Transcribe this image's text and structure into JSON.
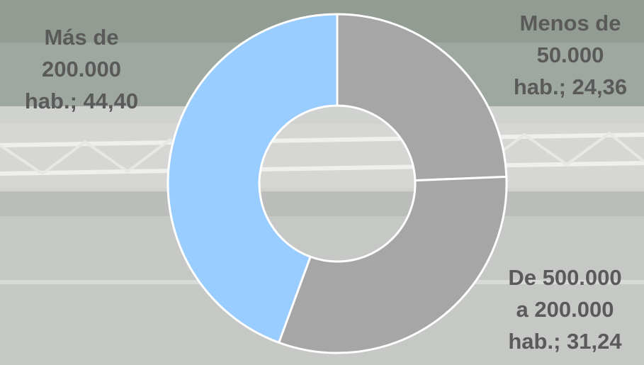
{
  "chart_data": {
    "type": "pie",
    "variant": "donut",
    "categories": [
      "Menos de 50.000 hab.",
      "De 500.000 a 200.000 hab.",
      "Más de 200.000 hab."
    ],
    "values": [
      24.36,
      31.24,
      44.4
    ],
    "colors": [
      "#a6a6a6",
      "#a6a6a6",
      "#99ccff"
    ],
    "data_labels": [
      [
        "Menos de",
        "50.000",
        "hab.; 24,36"
      ],
      [
        "De 500.000",
        "a 200.000",
        "hab.; 31,24"
      ],
      [
        "Más de",
        "200.000",
        "hab.; 44,40"
      ]
    ],
    "start_angle_deg": 0,
    "direction": "clockwise",
    "legend": "none"
  }
}
